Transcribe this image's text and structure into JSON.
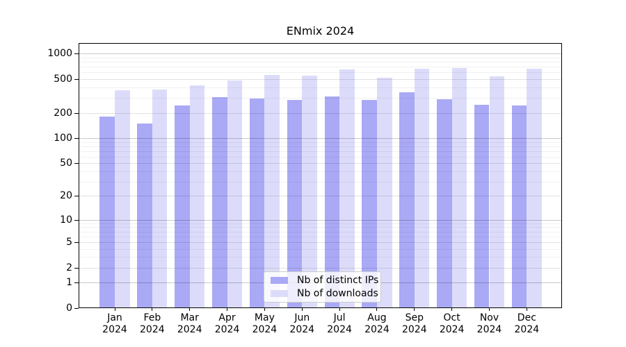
{
  "chart_data": {
    "type": "bar",
    "title": "ENmix 2024",
    "year": "2024",
    "months": [
      "Jan",
      "Feb",
      "Mar",
      "Apr",
      "May",
      "Jun",
      "Jul",
      "Aug",
      "Sep",
      "Oct",
      "Nov",
      "Dec"
    ],
    "categories": [
      "Jan 2024",
      "Feb 2024",
      "Mar 2024",
      "Apr 2024",
      "May 2024",
      "Jun 2024",
      "Jul 2024",
      "Aug 2024",
      "Sep 2024",
      "Oct 2024",
      "Nov 2024",
      "Dec 2024"
    ],
    "series": [
      {
        "name": "Nb of distinct IPs",
        "color": "#a9a9f5",
        "values": [
          182,
          148,
          246,
          306,
          293,
          284,
          310,
          284,
          351,
          288,
          250,
          245
        ]
      },
      {
        "name": "Nb of downloads",
        "color": "#dcdcfa",
        "values": [
          369,
          377,
          420,
          485,
          557,
          550,
          652,
          523,
          664,
          673,
          540,
          664
        ]
      }
    ],
    "xlabel": "",
    "ylabel": "",
    "y_scale": "log1p",
    "ylim": [
      0,
      1350
    ],
    "y_ticks": [
      0,
      1,
      2,
      5,
      10,
      20,
      50,
      100,
      200,
      500,
      1000
    ],
    "y_minor_ticks": [
      3,
      4,
      6,
      7,
      8,
      9,
      30,
      40,
      60,
      70,
      80,
      90,
      300,
      400,
      600,
      700,
      800,
      900
    ],
    "grid": true,
    "legend_position": "lower center inside",
    "grid_colors": {
      "decade": "rgba(0,0,0,0.21)",
      "major": "rgba(0,0,0,0.115)",
      "minor": "rgba(0,0,0,0.055)"
    }
  }
}
